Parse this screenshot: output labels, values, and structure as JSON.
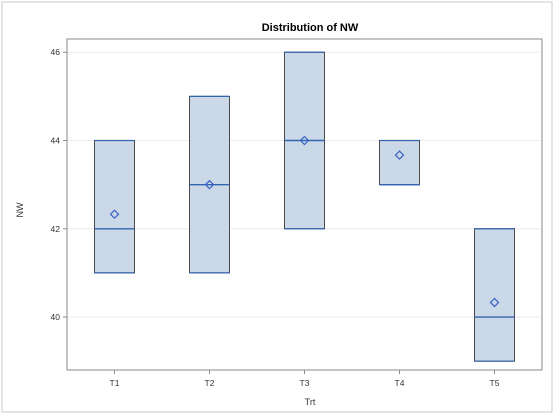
{
  "chart_data": {
    "type": "box",
    "title": "Distribution of NW",
    "xlabel": "Trt",
    "ylabel": "NW",
    "categories": [
      "T1",
      "T2",
      "T3",
      "T4",
      "T5"
    ],
    "ylim": [
      38.8,
      46.3
    ],
    "yticks": [
      40,
      42,
      44,
      46
    ],
    "grid": true,
    "boxes": [
      {
        "category": "T1",
        "q1": 41,
        "median": 42,
        "q3": 44,
        "mean": 42.33
      },
      {
        "category": "T2",
        "q1": 41,
        "median": 43,
        "q3": 45,
        "mean": 43
      },
      {
        "category": "T3",
        "q1": 42,
        "median": 44,
        "q3": 46,
        "mean": 44
      },
      {
        "category": "T4",
        "q1": 43,
        "median": 43,
        "q3": 44,
        "mean": 43.67
      },
      {
        "category": "T5",
        "q1": 39,
        "median": 40,
        "q3": 42,
        "mean": 40.33
      }
    ],
    "colors": {
      "box_fill": "#cbd8e8",
      "box_stroke": "#4a4a4a",
      "median": "#3465b0",
      "mean_marker": "#3a62c4",
      "grid": "#ececec",
      "frame": "#8a8a8a"
    }
  }
}
